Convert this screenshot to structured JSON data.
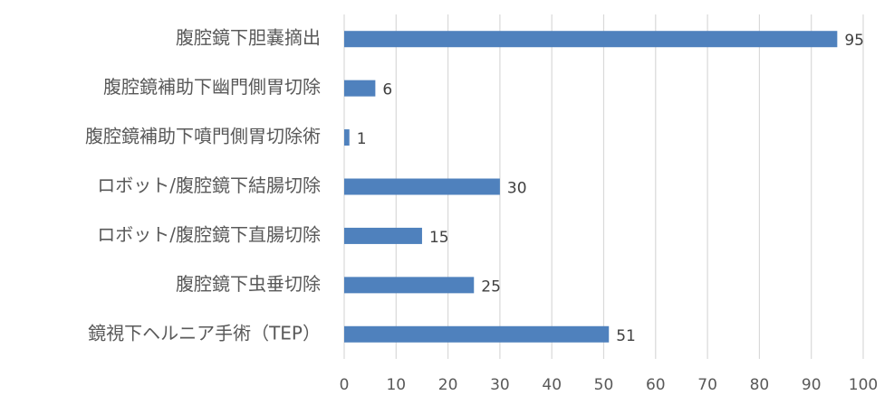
{
  "chart_data": {
    "type": "bar",
    "orientation": "horizontal",
    "categories": [
      "腹腔鏡下胆嚢摘出",
      "腹腔鏡補助下幽門側胃切除",
      "腹腔鏡補助下噴門側胃切除術",
      "ロボット/腹腔鏡下結腸切除",
      "ロボット/腹腔鏡下直腸切除",
      "腹腔鏡下虫垂切除",
      "鏡視下ヘルニア手術（TEP）"
    ],
    "values": [
      95,
      6,
      1,
      30,
      15,
      25,
      51
    ],
    "color": "#4f81bd",
    "xlim": [
      0,
      100
    ],
    "xticks": [
      0,
      10,
      20,
      30,
      40,
      50,
      60,
      70,
      80,
      90,
      100
    ],
    "grid": true
  }
}
